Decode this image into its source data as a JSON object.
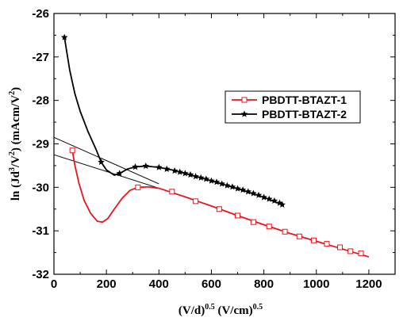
{
  "chart_data": {
    "type": "line",
    "xlabel_parts": [
      "(V/d)",
      "0.5",
      " (V/cm)",
      "0.5"
    ],
    "ylabel_parts": [
      "ln (Jd",
      "3",
      "/V",
      "2",
      ") (mAcm/V",
      "2",
      ")"
    ],
    "xlim": [
      0,
      1300
    ],
    "ylim": [
      -32,
      -26
    ],
    "xticks": [
      0,
      200,
      400,
      600,
      800,
      1000,
      1200
    ],
    "yticks": [
      -26,
      -27,
      -28,
      -29,
      -30,
      -31,
      -32
    ],
    "grid": false,
    "legend_position": "center-right",
    "series": [
      {
        "name": "PBDTT-BTAZT-1",
        "color": "#e8141e",
        "marker": "open-square",
        "curve": [
          [
            70,
            -29.15
          ],
          [
            80,
            -29.5
          ],
          [
            95,
            -29.9
          ],
          [
            115,
            -30.3
          ],
          [
            140,
            -30.6
          ],
          [
            165,
            -30.78
          ],
          [
            185,
            -30.8
          ],
          [
            205,
            -30.72
          ],
          [
            230,
            -30.5
          ],
          [
            260,
            -30.25
          ],
          [
            290,
            -30.07
          ],
          [
            320,
            -30.0
          ],
          [
            360,
            -29.99
          ],
          [
            400,
            -30.02
          ],
          [
            440,
            -30.1
          ],
          [
            500,
            -30.22
          ],
          [
            600,
            -30.43
          ],
          [
            700,
            -30.65
          ],
          [
            800,
            -30.86
          ],
          [
            900,
            -31.06
          ],
          [
            1000,
            -31.24
          ],
          [
            1100,
            -31.42
          ],
          [
            1200,
            -31.6
          ]
        ],
        "markers": [
          [
            70,
            -29.15
          ],
          [
            320,
            -30.0
          ],
          [
            450,
            -30.1
          ],
          [
            540,
            -30.32
          ],
          [
            630,
            -30.5
          ],
          [
            700,
            -30.65
          ],
          [
            760,
            -30.8
          ],
          [
            820,
            -30.9
          ],
          [
            880,
            -31.02
          ],
          [
            935,
            -31.13
          ],
          [
            990,
            -31.22
          ],
          [
            1040,
            -31.3
          ],
          [
            1090,
            -31.38
          ],
          [
            1130,
            -31.47
          ],
          [
            1170,
            -31.52
          ]
        ]
      },
      {
        "name": "PBDTT-BTAZT-2",
        "color": "#000000",
        "marker": "star",
        "curve": [
          [
            40,
            -26.55
          ],
          [
            60,
            -27.3
          ],
          [
            80,
            -27.85
          ],
          [
            100,
            -28.25
          ],
          [
            130,
            -28.72
          ],
          [
            160,
            -29.12
          ],
          [
            180,
            -29.42
          ],
          [
            200,
            -29.6
          ],
          [
            230,
            -29.72
          ],
          [
            250,
            -29.68
          ],
          [
            280,
            -29.58
          ],
          [
            310,
            -29.53
          ],
          [
            350,
            -29.51
          ],
          [
            400,
            -29.54
          ],
          [
            450,
            -29.6
          ],
          [
            500,
            -29.68
          ],
          [
            600,
            -29.85
          ],
          [
            700,
            -30.03
          ],
          [
            800,
            -30.23
          ],
          [
            870,
            -30.4
          ]
        ],
        "markers": [
          [
            40,
            -26.55
          ],
          [
            180,
            -29.42
          ],
          [
            250,
            -29.68
          ],
          [
            310,
            -29.53
          ],
          [
            350,
            -29.51
          ],
          [
            400,
            -29.54
          ],
          [
            430,
            -29.58
          ],
          [
            460,
            -29.62
          ],
          [
            480,
            -29.65
          ],
          [
            500,
            -29.68
          ],
          [
            520,
            -29.71
          ],
          [
            540,
            -29.75
          ],
          [
            560,
            -29.78
          ],
          [
            580,
            -29.81
          ],
          [
            600,
            -29.85
          ],
          [
            620,
            -29.88
          ],
          [
            640,
            -29.92
          ],
          [
            660,
            -29.96
          ],
          [
            680,
            -29.99
          ],
          [
            700,
            -30.03
          ],
          [
            720,
            -30.06
          ],
          [
            740,
            -30.1
          ],
          [
            760,
            -30.14
          ],
          [
            780,
            -30.18
          ],
          [
            800,
            -30.23
          ],
          [
            820,
            -30.27
          ],
          [
            840,
            -30.31
          ],
          [
            860,
            -30.36
          ],
          [
            870,
            -30.4
          ]
        ]
      }
    ],
    "fit_lines": [
      {
        "color": "#000000",
        "points": [
          [
            0,
            -28.85
          ],
          [
            400,
            -29.92
          ]
        ]
      },
      {
        "color": "#000000",
        "points": [
          [
            0,
            -29.25
          ],
          [
            400,
            -30.02
          ]
        ]
      }
    ]
  }
}
